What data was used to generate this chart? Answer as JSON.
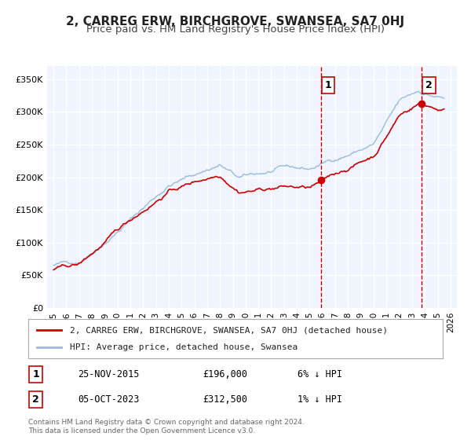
{
  "title": "2, CARREG ERW, BIRCHGROVE, SWANSEA, SA7 0HJ",
  "subtitle": "Price paid vs. HM Land Registry's House Price Index (HPI)",
  "legend_label_red": "2, CARREG ERW, BIRCHGROVE, SWANSEA, SA7 0HJ (detached house)",
  "legend_label_blue": "HPI: Average price, detached house, Swansea",
  "point1_label": "1",
  "point1_date": "25-NOV-2015",
  "point1_price": "£196,000",
  "point1_hpi": "6% ↓ HPI",
  "point1_x": 2015.9,
  "point1_y": 196000,
  "point2_label": "2",
  "point2_date": "05-OCT-2023",
  "point2_price": "£312,500",
  "point2_hpi": "1% ↓ HPI",
  "point2_x": 2023.75,
  "point2_y": 312500,
  "vline1_x": 2015.9,
  "vline2_x": 2023.75,
  "ylabel_ticks": [
    "0",
    "50K",
    "100K",
    "150K",
    "200K",
    "250K",
    "300K",
    "350K"
  ],
  "ytick_vals": [
    0,
    50000,
    100000,
    150000,
    200000,
    250000,
    300000,
    350000
  ],
  "xlim": [
    1994.5,
    2026.5
  ],
  "ylim": [
    0,
    370000
  ],
  "background_color": "#ffffff",
  "plot_bg_color": "#f0f4ff",
  "grid_color": "#ffffff",
  "red_color": "#cc0000",
  "blue_color": "#99bbdd",
  "vline_color": "#cc0000",
  "footer_text": "Contains HM Land Registry data © Crown copyright and database right 2024.\nThis data is licensed under the Open Government Licence v3.0.",
  "title_fontsize": 11,
  "subtitle_fontsize": 9.5
}
